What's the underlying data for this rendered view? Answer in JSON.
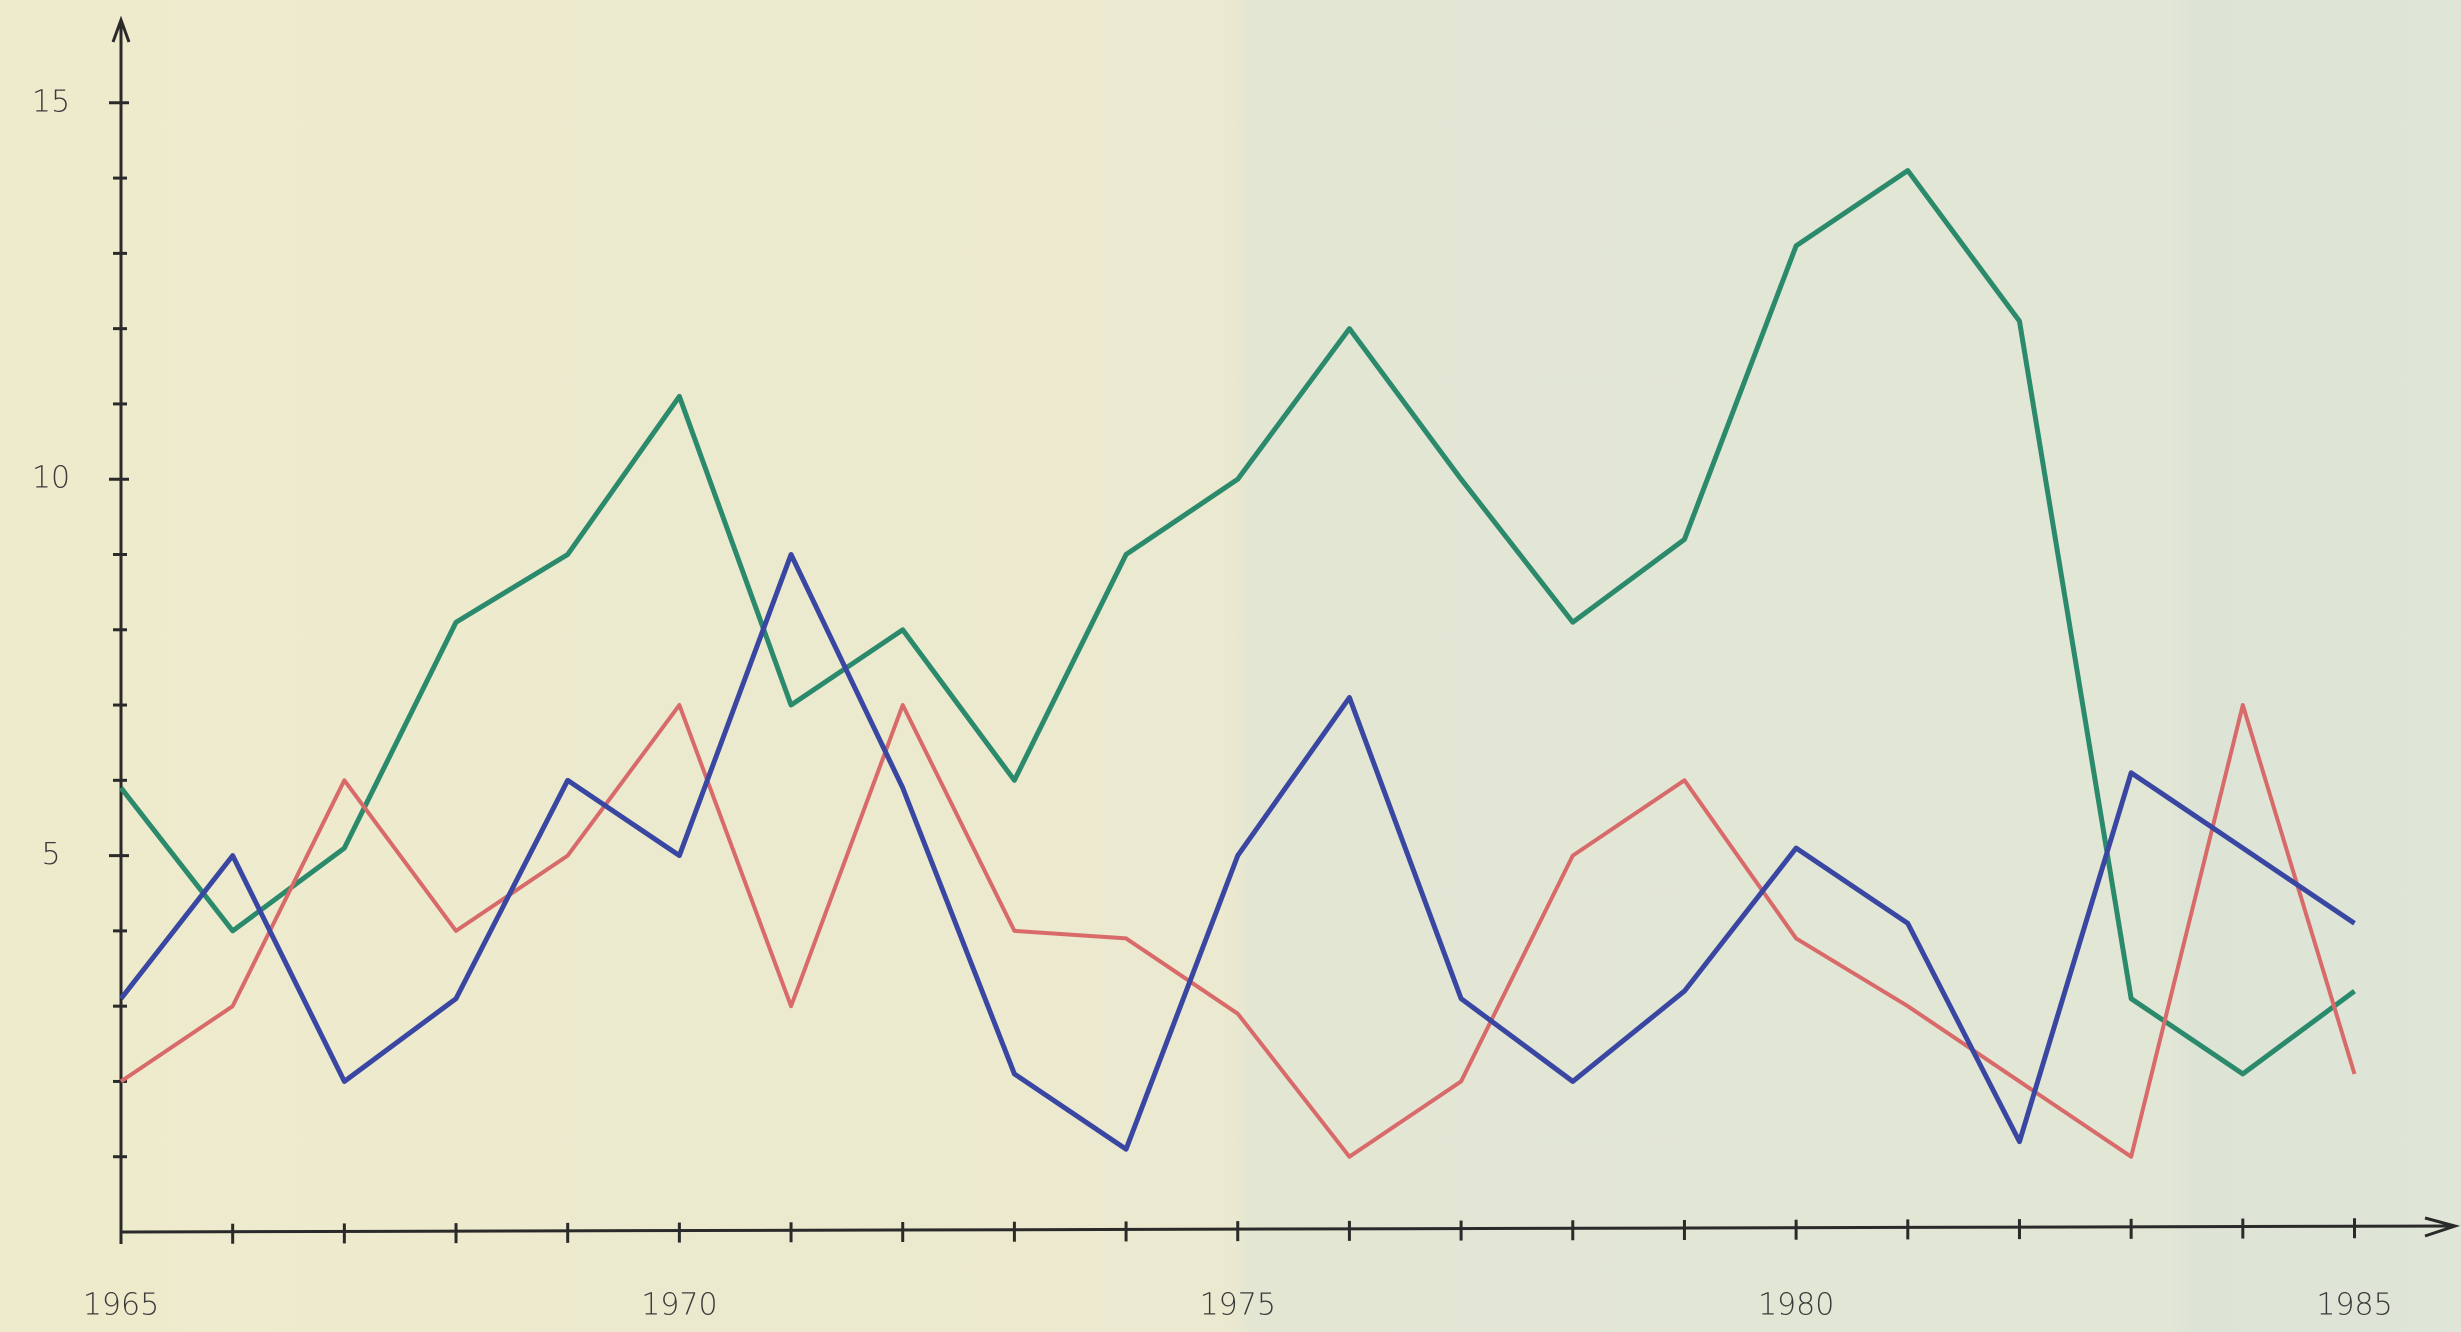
{
  "chart_data": {
    "type": "line",
    "x": [
      1965,
      1966,
      1967,
      1968,
      1969,
      1970,
      1971,
      1972,
      1973,
      1974,
      1975,
      1976,
      1977,
      1978,
      1979,
      1980,
      1981,
      1982,
      1983,
      1984,
      1985
    ],
    "series": [
      {
        "color": "#2b8a6c",
        "values": [
          5.9,
          4.0,
          5.1,
          8.1,
          9.0,
          11.1,
          7.0,
          8.0,
          6.0,
          9.0,
          10.0,
          12.0,
          10.0,
          8.1,
          9.2,
          13.1,
          14.1,
          12.1,
          3.1,
          2.1,
          3.2
        ]
      },
      {
        "color": "#d86a6a",
        "values": [
          2.0,
          3.0,
          6.0,
          4.0,
          5.0,
          7.0,
          3.0,
          7.0,
          4.0,
          3.9,
          2.9,
          1.0,
          2.0,
          5.0,
          6.0,
          3.9,
          3.0,
          2.0,
          1.0,
          7.0,
          2.1
        ]
      },
      {
        "color": "#3a47a2",
        "values": [
          3.1,
          5.0,
          2.0,
          3.1,
          6.0,
          5.0,
          9.0,
          5.9,
          2.1,
          1.1,
          5.0,
          7.1,
          3.1,
          2.0,
          3.2,
          5.1,
          4.1,
          1.2,
          6.1,
          5.1,
          4.1
        ]
      }
    ],
    "xlim": [
      1965,
      1985.9
    ],
    "xticks": [
      1965,
      1970,
      1975,
      1980,
      1985
    ],
    "ylim": [
      0,
      16.1
    ],
    "yticks": [
      5,
      10,
      15
    ],
    "minor_yticks": [
      1,
      2,
      3,
      4,
      6,
      7,
      8,
      9,
      11,
      12,
      13,
      14
    ]
  }
}
